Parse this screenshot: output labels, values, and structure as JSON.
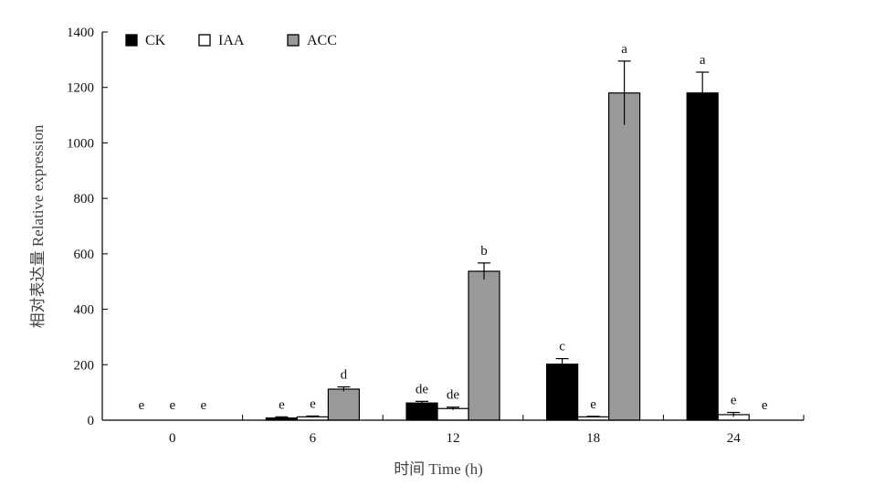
{
  "chart_data": {
    "type": "bar",
    "xlabel": "时间 Time (h)",
    "ylabel": "相对表达量 Relative expression",
    "categories": [
      "0",
      "6",
      "12",
      "18",
      "24"
    ],
    "ylim": [
      0,
      1400
    ],
    "yticks": [
      0,
      200,
      400,
      600,
      800,
      1000,
      1200,
      1400
    ],
    "legend_position": "top-left",
    "grid": false,
    "series": [
      {
        "name": "CK",
        "color": "#000000",
        "values": [
          0,
          8,
          62,
          202,
          1180
        ],
        "errors": [
          0,
          4,
          6,
          20,
          75
        ],
        "letters": [
          "e",
          "e",
          "de",
          "c",
          "a"
        ]
      },
      {
        "name": "IAA",
        "color": "#ffffff",
        "values": [
          0,
          12,
          42,
          12,
          20
        ],
        "errors": [
          0,
          3,
          5,
          2,
          8
        ],
        "letters": [
          "e",
          "e",
          "de",
          "e",
          "e"
        ]
      },
      {
        "name": "ACC",
        "color": "#999999",
        "values": [
          0,
          112,
          537,
          1180,
          0
        ],
        "errors": [
          0,
          8,
          30,
          115,
          0
        ],
        "letters": [
          "e",
          "d",
          "b",
          "a",
          "e"
        ]
      }
    ]
  }
}
